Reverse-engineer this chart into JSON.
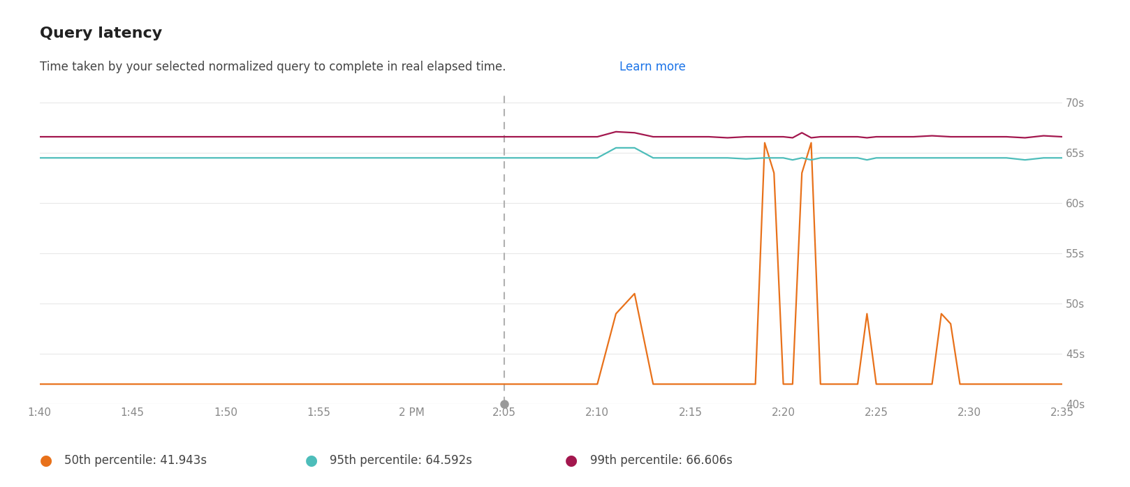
{
  "title": "Query latency",
  "subtitle": "Time taken by your selected normalized query to complete in real elapsed time.",
  "subtitle_link": "Learn more",
  "background_color": "#ffffff",
  "plot_bg_color": "#ffffff",
  "grid_color": "#e8e8e8",
  "ylim": [
    40,
    71
  ],
  "yticks": [
    40,
    45,
    50,
    55,
    60,
    65,
    70
  ],
  "ytick_labels": [
    "40s",
    "45s",
    "50s",
    "55s",
    "60s",
    "65s",
    "70s"
  ],
  "x_start_min": 0,
  "x_end_min": 55,
  "xtick_positions": [
    0,
    5,
    10,
    15,
    20,
    25,
    30,
    35,
    40,
    45,
    50,
    55
  ],
  "xtick_labels": [
    "1:40",
    "1:45",
    "1:50",
    "1:55",
    "2 PM",
    "2:05",
    "2:10",
    "2:15",
    "2:20",
    "2:25",
    "2:30",
    "2:35"
  ],
  "vline_x": 25,
  "p50_color": "#e8711a",
  "p95_color": "#4dbdba",
  "p99_color": "#a3174e",
  "p50_label": "50th percentile: 41.943s",
  "p95_label": "95th percentile: 64.592s",
  "p99_label": "99th percentile: 66.606s",
  "p50_x": [
    0,
    1,
    2,
    3,
    4,
    5,
    6,
    7,
    8,
    9,
    10,
    11,
    12,
    13,
    14,
    15,
    16,
    17,
    18,
    19,
    20,
    21,
    22,
    23,
    24,
    25,
    25.5,
    26,
    27,
    28,
    29,
    30,
    31,
    32,
    33,
    34,
    35,
    36,
    37,
    37.5,
    38,
    38.5,
    39,
    39.5,
    40,
    40.5,
    41,
    41.5,
    42,
    43,
    44,
    44.5,
    45,
    46,
    47,
    48,
    48.5,
    49,
    49.5,
    50,
    51,
    52,
    53,
    54,
    55
  ],
  "p50_y": [
    42,
    42,
    42,
    42,
    42,
    42,
    42,
    42,
    42,
    42,
    42,
    42,
    42,
    42,
    42,
    42,
    42,
    42,
    42,
    42,
    42,
    42,
    42,
    42,
    42,
    42,
    42,
    42,
    42,
    42,
    42,
    42,
    49,
    51,
    42,
    42,
    42,
    42,
    42,
    42,
    42,
    42,
    66,
    63,
    42,
    42,
    63,
    66,
    42,
    42,
    42,
    49,
    42,
    42,
    42,
    42,
    49,
    48,
    42,
    42,
    42,
    42,
    42,
    42,
    42
  ],
  "p95_x": [
    0,
    1,
    2,
    3,
    4,
    5,
    6,
    7,
    8,
    9,
    10,
    11,
    12,
    13,
    14,
    15,
    16,
    17,
    18,
    19,
    20,
    21,
    22,
    23,
    24,
    25,
    26,
    27,
    28,
    29,
    30,
    31,
    32,
    33,
    34,
    35,
    36,
    37,
    38,
    39,
    40,
    40.5,
    41,
    41.5,
    42,
    43,
    44,
    44.5,
    45,
    46,
    47,
    48,
    49,
    50,
    51,
    52,
    53,
    54,
    55
  ],
  "p95_y": [
    64.5,
    64.5,
    64.5,
    64.5,
    64.5,
    64.5,
    64.5,
    64.5,
    64.5,
    64.5,
    64.5,
    64.5,
    64.5,
    64.5,
    64.5,
    64.5,
    64.5,
    64.5,
    64.5,
    64.5,
    64.5,
    64.5,
    64.5,
    64.5,
    64.5,
    64.5,
    64.5,
    64.5,
    64.5,
    64.5,
    64.5,
    65.5,
    65.5,
    64.5,
    64.5,
    64.5,
    64.5,
    64.5,
    64.4,
    64.5,
    64.5,
    64.3,
    64.5,
    64.3,
    64.5,
    64.5,
    64.5,
    64.3,
    64.5,
    64.5,
    64.5,
    64.5,
    64.5,
    64.5,
    64.5,
    64.5,
    64.3,
    64.5,
    64.5
  ],
  "p99_x": [
    0,
    1,
    2,
    3,
    4,
    5,
    6,
    7,
    8,
    9,
    10,
    11,
    12,
    13,
    14,
    15,
    16,
    17,
    18,
    19,
    20,
    21,
    22,
    23,
    24,
    25,
    26,
    27,
    28,
    29,
    30,
    31,
    32,
    33,
    34,
    35,
    36,
    37,
    38,
    39,
    40,
    40.5,
    41,
    41.5,
    42,
    43,
    44,
    44.5,
    45,
    46,
    47,
    48,
    49,
    50,
    51,
    52,
    53,
    54,
    55
  ],
  "p99_y": [
    66.6,
    66.6,
    66.6,
    66.6,
    66.6,
    66.6,
    66.6,
    66.6,
    66.6,
    66.6,
    66.6,
    66.6,
    66.6,
    66.6,
    66.6,
    66.6,
    66.6,
    66.6,
    66.6,
    66.6,
    66.6,
    66.6,
    66.6,
    66.6,
    66.6,
    66.6,
    66.6,
    66.6,
    66.6,
    66.6,
    66.6,
    67.1,
    67.0,
    66.6,
    66.6,
    66.6,
    66.6,
    66.5,
    66.6,
    66.6,
    66.6,
    66.5,
    67.0,
    66.5,
    66.6,
    66.6,
    66.6,
    66.5,
    66.6,
    66.6,
    66.6,
    66.7,
    66.6,
    66.6,
    66.6,
    66.6,
    66.5,
    66.7,
    66.6
  ]
}
